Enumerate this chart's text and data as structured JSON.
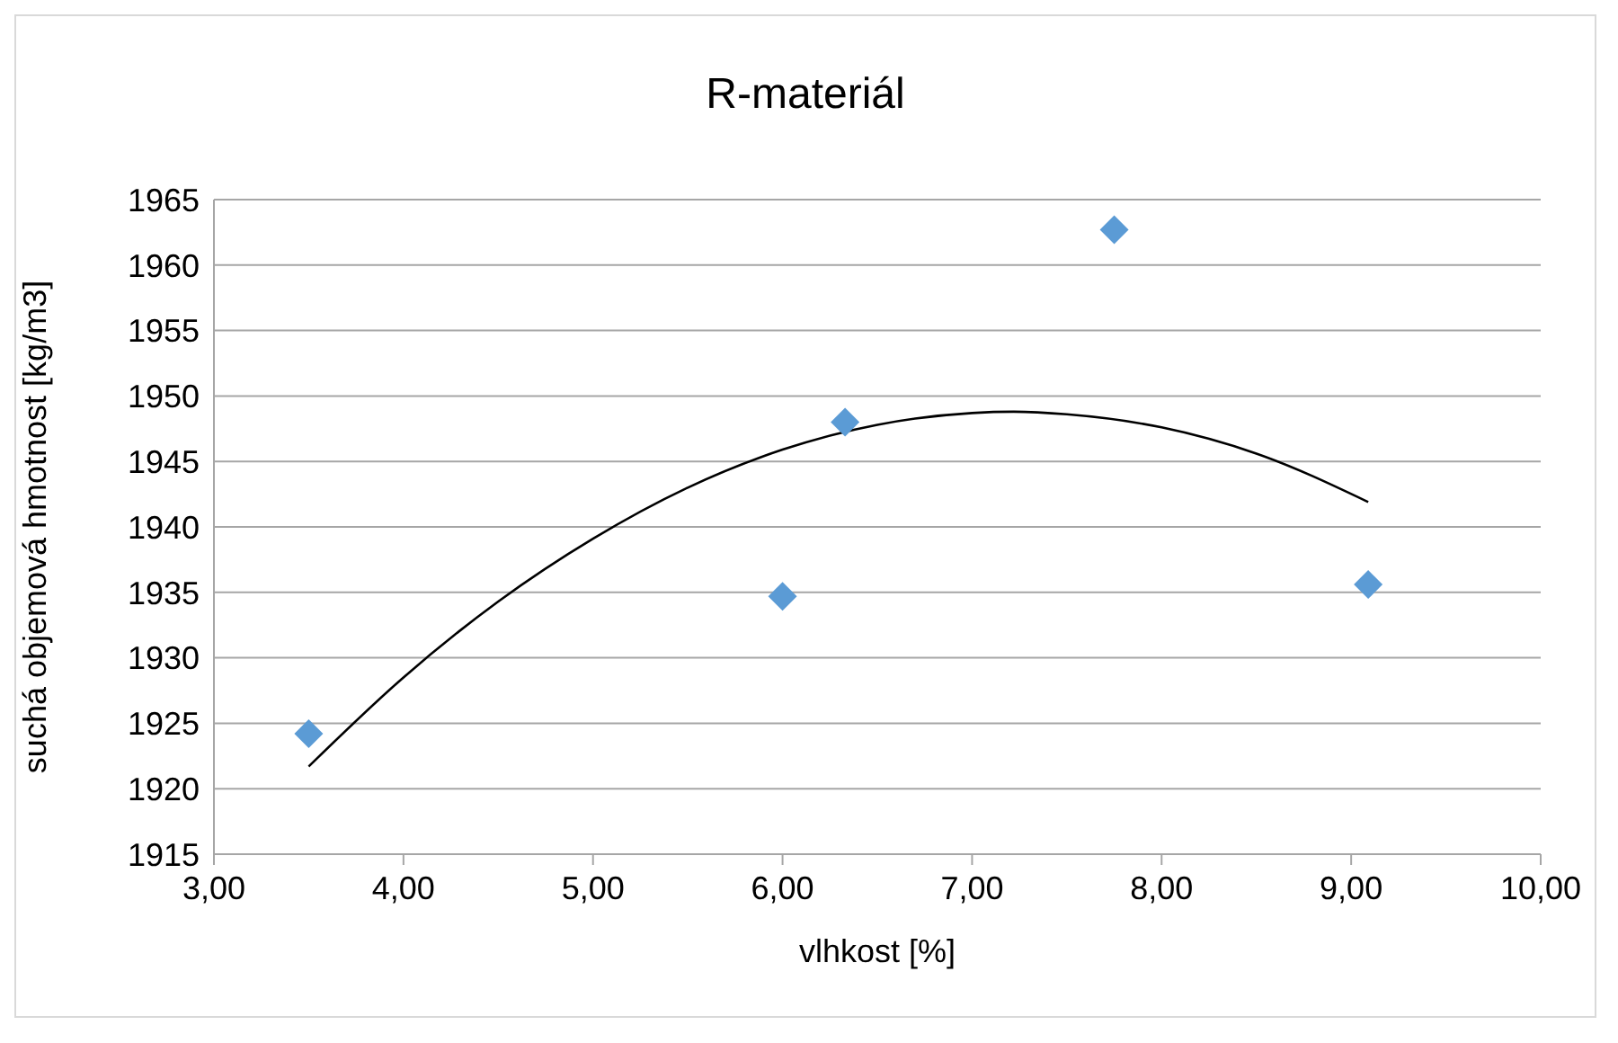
{
  "chart_data": {
    "type": "scatter",
    "title": "R-materiál",
    "xlabel": "vlhkost [%]",
    "ylabel": "suchá objemová hmotnost [kg/m3]",
    "xlim": [
      3,
      10
    ],
    "xticks": [
      {
        "value": 3,
        "label": "3,00"
      },
      {
        "value": 4,
        "label": "4,00"
      },
      {
        "value": 5,
        "label": "5,00"
      },
      {
        "value": 6,
        "label": "6,00"
      },
      {
        "value": 7,
        "label": "7,00"
      },
      {
        "value": 8,
        "label": "8,00"
      },
      {
        "value": 9,
        "label": "9,00"
      },
      {
        "value": 10,
        "label": "10,00"
      }
    ],
    "ylim": [
      1915,
      1965
    ],
    "yticks": [
      1915,
      1920,
      1925,
      1930,
      1935,
      1940,
      1945,
      1950,
      1955,
      1960,
      1965
    ],
    "grid": "y",
    "series": [
      {
        "color": "#5b9bd5",
        "marker": "diamond",
        "x": [
          3.5,
          6.0,
          6.33,
          7.75,
          9.09
        ],
        "values": [
          1924.2,
          1934.7,
          1948.0,
          1962.7,
          1935.6
        ]
      },
      {
        "type": "line",
        "color": "#000000",
        "marker": "none",
        "line_style": "solid",
        "x": [
          3.5,
          4.0,
          4.5,
          5.0,
          5.5,
          6.0,
          6.5,
          7.0,
          7.22,
          7.5,
          8.0,
          8.5,
          9.09
        ],
        "values": [
          1921.7,
          1928.5,
          1934.3,
          1939.1,
          1943.0,
          1945.9,
          1947.8,
          1948.7,
          1948.8,
          1948.6,
          1947.6,
          1945.6,
          1941.9
        ]
      }
    ]
  }
}
